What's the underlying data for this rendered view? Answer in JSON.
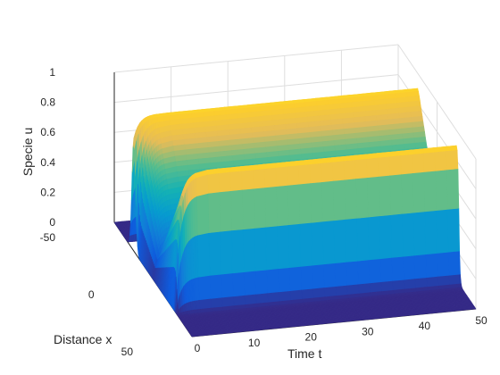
{
  "chart_data": {
    "type": "surface",
    "title": "",
    "xlabel": "Time t",
    "ylabel": "Distance x",
    "zlabel": "Specie u",
    "x_range": [
      0,
      50
    ],
    "y_range": [
      -50,
      50
    ],
    "z_range": [
      0,
      1
    ],
    "x_ticks": [
      "0",
      "10",
      "20",
      "30",
      "40",
      "50"
    ],
    "y_ticks": [
      "-50",
      "0",
      "50"
    ],
    "z_ticks": [
      "0",
      "0.2",
      "0.4",
      "0.6",
      "0.8",
      "1"
    ],
    "grid": true,
    "colormap": "parula",
    "surface_description_values": {
      "initial_peak": {
        "t": 0,
        "x_center": -25,
        "u_max": 0.75
      },
      "plateau": {
        "x_from": -28,
        "x_to": 28,
        "u_center": 1.0,
        "u_mid": 0.75,
        "u_inner_edge": 0.25
      },
      "profile_steady_after_t": 2
    },
    "colors": {
      "level_0": "#352a87",
      "level_1": "#1a7fd9",
      "level_2": "#e5bc58",
      "level_3": "#f6e52a"
    }
  }
}
